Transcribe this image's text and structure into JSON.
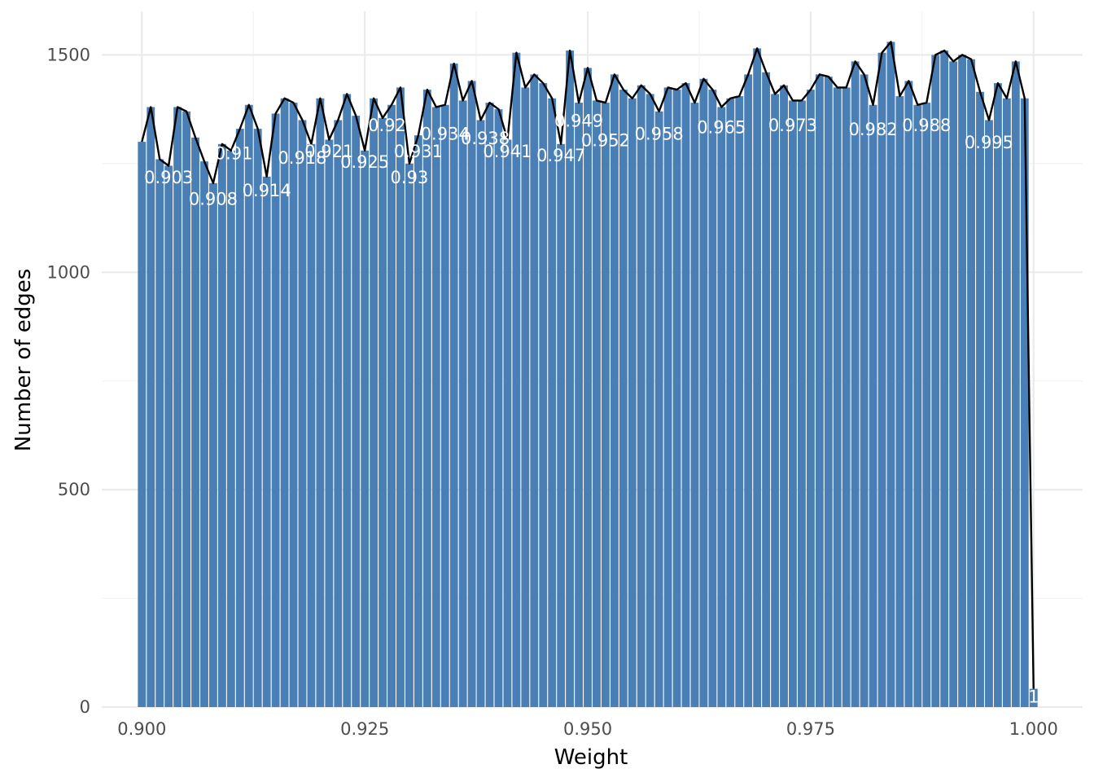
{
  "chart_data": {
    "type": "bar",
    "xlabel": "Weight",
    "ylabel": "Number of edges",
    "xlim": [
      0.8955,
      1.0055
    ],
    "ylim": [
      0,
      1600
    ],
    "x_ticks": [
      "0.900",
      "0.925",
      "0.950",
      "0.975",
      "1.000"
    ],
    "x_tick_values": [
      0.9,
      0.925,
      0.95,
      0.975,
      1.0
    ],
    "y_ticks": [
      "0",
      "500",
      "1000",
      "1500"
    ],
    "y_tick_values": [
      0,
      500,
      1000,
      1500
    ],
    "grid": true,
    "bar_color": "#4A7FB5",
    "line_color": "#000000",
    "label_color": "#ffffff",
    "x": [
      0.9,
      0.901,
      0.902,
      0.903,
      0.904,
      0.905,
      0.906,
      0.907,
      0.908,
      0.909,
      0.91,
      0.911,
      0.912,
      0.913,
      0.914,
      0.915,
      0.916,
      0.917,
      0.918,
      0.919,
      0.92,
      0.921,
      0.922,
      0.923,
      0.924,
      0.925,
      0.926,
      0.927,
      0.928,
      0.929,
      0.93,
      0.931,
      0.932,
      0.933,
      0.934,
      0.935,
      0.936,
      0.937,
      0.938,
      0.939,
      0.94,
      0.941,
      0.942,
      0.943,
      0.944,
      0.945,
      0.946,
      0.947,
      0.948,
      0.949,
      0.95,
      0.951,
      0.952,
      0.953,
      0.954,
      0.955,
      0.956,
      0.957,
      0.958,
      0.959,
      0.96,
      0.961,
      0.962,
      0.963,
      0.964,
      0.965,
      0.966,
      0.967,
      0.968,
      0.969,
      0.97,
      0.971,
      0.972,
      0.973,
      0.974,
      0.975,
      0.976,
      0.977,
      0.978,
      0.979,
      0.98,
      0.981,
      0.982,
      0.983,
      0.984,
      0.985,
      0.986,
      0.987,
      0.988,
      0.989,
      0.99,
      0.991,
      0.992,
      0.993,
      0.994,
      0.995,
      0.996,
      0.997,
      0.998,
      0.999,
      1.0
    ],
    "values": [
      1300,
      1380,
      1260,
      1245,
      1380,
      1370,
      1310,
      1255,
      1205,
      1295,
      1280,
      1330,
      1385,
      1330,
      1220,
      1365,
      1400,
      1390,
      1350,
      1295,
      1400,
      1305,
      1350,
      1410,
      1360,
      1280,
      1400,
      1355,
      1385,
      1425,
      1250,
      1315,
      1420,
      1380,
      1385,
      1480,
      1395,
      1440,
      1350,
      1390,
      1375,
      1305,
      1505,
      1425,
      1455,
      1435,
      1400,
      1295,
      1510,
      1390,
      1470,
      1395,
      1390,
      1455,
      1420,
      1400,
      1430,
      1410,
      1370,
      1425,
      1420,
      1435,
      1390,
      1445,
      1420,
      1380,
      1400,
      1405,
      1455,
      1515,
      1460,
      1410,
      1430,
      1395,
      1395,
      1420,
      1455,
      1450,
      1425,
      1425,
      1485,
      1455,
      1385,
      1505,
      1530,
      1405,
      1440,
      1385,
      1390,
      1500,
      1510,
      1485,
      1500,
      1490,
      1415,
      1350,
      1435,
      1400,
      1485,
      1400,
      42
    ],
    "labels": [
      {
        "text": "0.903",
        "x": 0.903,
        "y": 1205
      },
      {
        "text": "0.908",
        "x": 0.908,
        "y": 1155
      },
      {
        "text": "0.91",
        "x": 0.9103,
        "y": 1260
      },
      {
        "text": "0.914",
        "x": 0.914,
        "y": 1175
      },
      {
        "text": "0.918",
        "x": 0.918,
        "y": 1250
      },
      {
        "text": "0.921",
        "x": 0.921,
        "y": 1265
      },
      {
        "text": "0.925",
        "x": 0.925,
        "y": 1240
      },
      {
        "text": "0.92",
        "x": 0.9275,
        "y": 1325
      },
      {
        "text": "0.93",
        "x": 0.93,
        "y": 1205
      },
      {
        "text": "0.931",
        "x": 0.931,
        "y": 1265
      },
      {
        "text": "0.934",
        "x": 0.934,
        "y": 1305
      },
      {
        "text": "0.938",
        "x": 0.9385,
        "y": 1295
      },
      {
        "text": "0.941",
        "x": 0.941,
        "y": 1265
      },
      {
        "text": "0.947",
        "x": 0.947,
        "y": 1255
      },
      {
        "text": "0.949",
        "x": 0.949,
        "y": 1335
      },
      {
        "text": "0.952",
        "x": 0.952,
        "y": 1290
      },
      {
        "text": "0.958",
        "x": 0.958,
        "y": 1305
      },
      {
        "text": "0.965",
        "x": 0.965,
        "y": 1320
      },
      {
        "text": "0.973",
        "x": 0.973,
        "y": 1325
      },
      {
        "text": "0.982",
        "x": 0.982,
        "y": 1315
      },
      {
        "text": "0.988",
        "x": 0.988,
        "y": 1325
      },
      {
        "text": "0.995",
        "x": 0.995,
        "y": 1285
      },
      {
        "text": "1",
        "x": 1.0,
        "y": 10
      }
    ]
  }
}
